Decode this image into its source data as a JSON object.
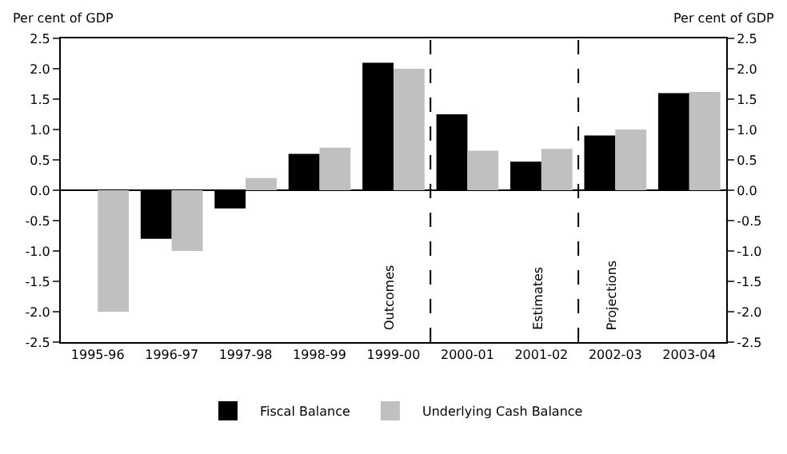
{
  "chart_data": {
    "type": "bar",
    "ylabel": "Per cent of GDP",
    "y2label": "Per cent of GDP",
    "categories": [
      "1995-96",
      "1996-97",
      "1997-98",
      "1998-99",
      "1999-00",
      "2000-01",
      "2001-02",
      "2002-03",
      "2003-04"
    ],
    "series": [
      {
        "name": "Fiscal Balance",
        "color": "#000000",
        "values": [
          null,
          -0.8,
          -0.3,
          0.6,
          2.1,
          1.25,
          0.47,
          0.9,
          1.6
        ]
      },
      {
        "name": "Underlying Cash Balance",
        "color": "#c0c0c0",
        "values": [
          -2.0,
          -1.0,
          0.2,
          0.7,
          2.0,
          0.65,
          0.68,
          1.0,
          1.62
        ]
      }
    ],
    "ylim": [
      -2.5,
      2.5
    ],
    "yticks": [
      {
        "value": -2.5,
        "label": "-2.5"
      },
      {
        "value": -2,
        "label": "-2.0"
      },
      {
        "value": -1.5,
        "label": "-1.5"
      },
      {
        "value": -1,
        "label": "-1.0"
      },
      {
        "value": -0.5,
        "label": "-0.5"
      },
      {
        "value": 0,
        "label": "0.0"
      },
      {
        "value": 0.5,
        "label": "0.5"
      },
      {
        "value": 1,
        "label": "1.0"
      },
      {
        "value": 1.5,
        "label": "1.5"
      },
      {
        "value": 2,
        "label": "2.0"
      },
      {
        "value": 2.5,
        "label": "2.5"
      }
    ],
    "y2lim": [
      -2.5,
      2.5
    ],
    "y2ticks": [
      {
        "value": -2.5,
        "label": "-2.5"
      },
      {
        "value": -2,
        "label": "-2.0"
      },
      {
        "value": -1.5,
        "label": "-1.5"
      },
      {
        "value": -1,
        "label": "-1.0"
      },
      {
        "value": -0.5,
        "label": "-0.5"
      },
      {
        "value": 0,
        "label": "0.0"
      },
      {
        "value": 0.5,
        "label": "0.5"
      },
      {
        "value": 1,
        "label": "1.0"
      },
      {
        "value": 1.5,
        "label": "1.5"
      },
      {
        "value": 2,
        "label": "2.0"
      },
      {
        "value": 2.5,
        "label": "2.5"
      }
    ],
    "annotations": [
      "Outcomes",
      "Estimates",
      "Projections"
    ],
    "legend": "bottom"
  }
}
